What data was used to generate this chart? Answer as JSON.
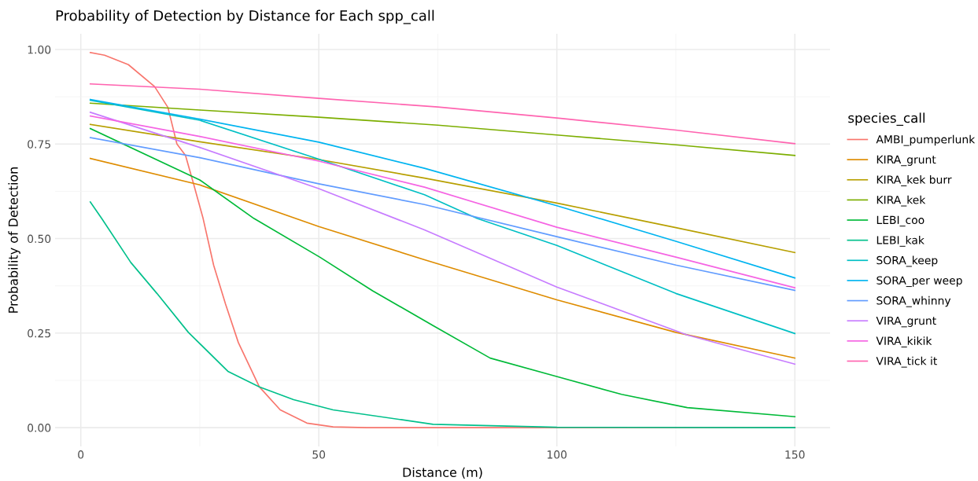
{
  "chart_data": {
    "type": "line",
    "title": "Probability of Detection by Distance for Each spp_call",
    "xlabel": "Distance (m)",
    "ylabel": "Probability of Detection",
    "legend_title": "species_call",
    "xlim": [
      -5.4,
      157.4
    ],
    "xticks": [
      0,
      50,
      100,
      150
    ],
    "ylim": [
      -0.0496,
      1.0416
    ],
    "yticks": [
      {
        "value": 0,
        "label": "0.00"
      },
      {
        "value": 0.25,
        "label": "0.25"
      },
      {
        "value": 0.5,
        "label": "0.50"
      },
      {
        "value": 0.75,
        "label": "0.75"
      },
      {
        "value": 1,
        "label": "1.00"
      }
    ],
    "grid": true,
    "legend": "right",
    "marker": "none",
    "line_style": "solid",
    "series": [
      {
        "name": "AMBI_pumperlunk",
        "color": "#f8766d",
        "x": [
          2,
          5,
          10,
          15.5,
          18.3,
          20.2,
          22,
          23.8,
          25.7,
          27.9,
          30.4,
          33.1,
          37.5,
          41.9,
          47.5,
          53,
          60,
          75,
          100,
          125,
          150
        ],
        "values": [
          0.992,
          0.985,
          0.96,
          0.902,
          0.847,
          0.75,
          0.72,
          0.64,
          0.553,
          0.43,
          0.327,
          0.225,
          0.108,
          0.047,
          0.012,
          0.002,
          0,
          0,
          0,
          0,
          0
        ]
      },
      {
        "name": "KIRA_grunt",
        "color": "#de8c00",
        "x": [
          2,
          25,
          50,
          72.2,
          100,
          125,
          150
        ],
        "values": [
          0.712,
          0.642,
          0.532,
          0.444,
          0.338,
          0.252,
          0.184
        ]
      },
      {
        "name": "KIRA_kek burr",
        "color": "#b79f00",
        "x": [
          2,
          25,
          50,
          72.2,
          100,
          125,
          150
        ],
        "values": [
          0.802,
          0.756,
          0.709,
          0.66,
          0.594,
          0.529,
          0.463
        ]
      },
      {
        "name": "KIRA_kek",
        "color": "#7cae00",
        "x": [
          2,
          25,
          50,
          75,
          100,
          125,
          150
        ],
        "values": [
          0.858,
          0.84,
          0.821,
          0.8,
          0.774,
          0.748,
          0.72
        ]
      },
      {
        "name": "LEBI_coo",
        "color": "#00ba38",
        "x": [
          2,
          25,
          36.4,
          50.2,
          61.3,
          74,
          86,
          99.8,
          113.6,
          127.4,
          150
        ],
        "values": [
          0.791,
          0.655,
          0.553,
          0.451,
          0.362,
          0.27,
          0.184,
          0.136,
          0.088,
          0.053,
          0.029
        ]
      },
      {
        "name": "LEBI_kak",
        "color": "#00c08b",
        "x": [
          2,
          4.4,
          10.5,
          16,
          22.6,
          30.9,
          37.5,
          44.7,
          53,
          74,
          100,
          150
        ],
        "values": [
          0.597,
          0.553,
          0.437,
          0.355,
          0.252,
          0.149,
          0.108,
          0.074,
          0.047,
          0.009,
          0.001,
          0
        ]
      },
      {
        "name": "SORA_keep",
        "color": "#00bfc4",
        "x": [
          2,
          25,
          50,
          72.2,
          83.3,
          100,
          125,
          150
        ],
        "values": [
          0.866,
          0.813,
          0.71,
          0.616,
          0.553,
          0.482,
          0.355,
          0.249
        ]
      },
      {
        "name": "SORA_per weep",
        "color": "#00b4f0",
        "x": [
          2,
          25,
          50,
          72.2,
          100,
          125,
          150
        ],
        "values": [
          0.868,
          0.816,
          0.755,
          0.686,
          0.587,
          0.493,
          0.396
        ]
      },
      {
        "name": "SORA_whinny",
        "color": "#619cff",
        "x": [
          2,
          25,
          50,
          72.2,
          100,
          125,
          150
        ],
        "values": [
          0.767,
          0.714,
          0.645,
          0.59,
          0.505,
          0.43,
          0.363
        ]
      },
      {
        "name": "VIRA_grunt",
        "color": "#c77cff",
        "x": [
          2,
          25,
          50,
          72.2,
          100,
          127.4,
          150
        ],
        "values": [
          0.834,
          0.741,
          0.632,
          0.523,
          0.372,
          0.245,
          0.168
        ]
      },
      {
        "name": "VIRA_kikik",
        "color": "#f564e3",
        "x": [
          2,
          25,
          50,
          72.2,
          100,
          125,
          150
        ],
        "values": [
          0.824,
          0.77,
          0.705,
          0.636,
          0.53,
          0.451,
          0.37
        ]
      },
      {
        "name": "VIRA_tick it",
        "color": "#ff64b0",
        "x": [
          2,
          25,
          50,
          75,
          100,
          125,
          150
        ],
        "values": [
          0.909,
          0.895,
          0.871,
          0.848,
          0.819,
          0.787,
          0.751
        ]
      }
    ]
  }
}
